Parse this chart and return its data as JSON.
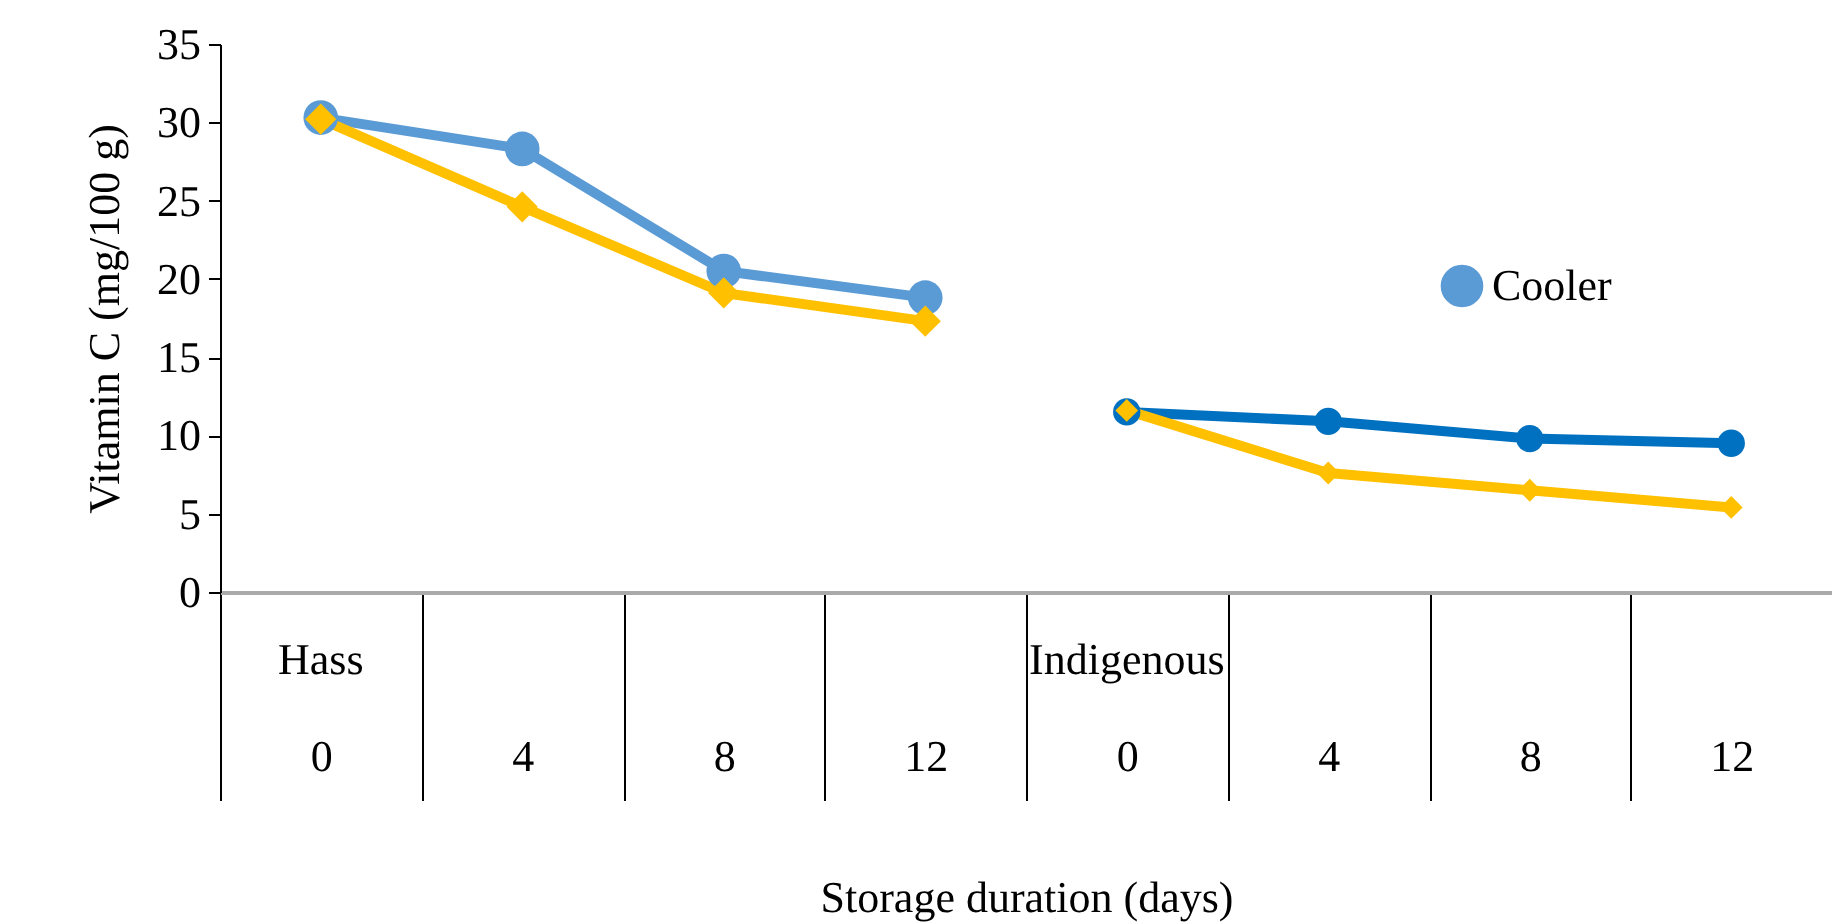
{
  "chart_data": {
    "type": "line",
    "xlabel": "Storage duration (days)",
    "ylabel": "Vitamin C (mg/100 g)",
    "categories": [
      "0",
      "4",
      "8",
      "12",
      "0",
      "4",
      "8",
      "12"
    ],
    "annotations": [
      "Hass",
      "Indigenous"
    ],
    "series": [
      {
        "name": "Cooler",
        "color": "#5b9bd5",
        "marker": "circle",
        "values": [
          30.3,
          28.3,
          20.5,
          18.8,
          null,
          null,
          null,
          null
        ]
      },
      {
        "color": "#ffc000",
        "marker": "diamond",
        "values": [
          30.2,
          24.6,
          19.1,
          17.3,
          null,
          null,
          null,
          null
        ]
      },
      {
        "color": "#0070c0",
        "marker": "circle",
        "values": [
          null,
          null,
          null,
          null,
          11.5,
          10.9,
          9.8,
          9.5
        ]
      },
      {
        "color": "#ffc000",
        "marker": "diamond",
        "values": [
          null,
          null,
          null,
          null,
          11.6,
          7.6,
          6.5,
          5.4
        ]
      }
    ],
    "ylim": [
      0,
      35
    ],
    "yticks": [
      0,
      5,
      10,
      15,
      20,
      25,
      30,
      35
    ],
    "grid": false,
    "legend": "top right"
  }
}
